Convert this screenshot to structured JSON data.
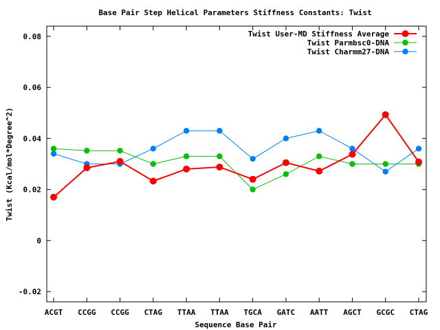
{
  "chart_data": {
    "type": "line",
    "title": "Base Pair Step Helical Parameters Stiffness Constants: Twist",
    "xlabel": "Sequence Base Pair",
    "ylabel": "Twist (Kcal/mol*Degree^2)",
    "categories": [
      "ACGT",
      "CCGG",
      "CCGG",
      "CTAG",
      "TTAA",
      "TTAA",
      "TGCA",
      "GATC",
      "AATT",
      "AGCT",
      "GCGC",
      "CTAG"
    ],
    "ylim": [
      -0.024,
      0.084
    ],
    "yticks": [
      -0.02,
      0,
      0.02,
      0.04,
      0.06,
      0.08
    ],
    "ytick_labels": [
      "-0.02",
      "0",
      "0.02",
      "0.04",
      "0.06",
      "0.08"
    ],
    "grid": false,
    "legend_position": "top-right",
    "series": [
      {
        "name": "Twist User-MD Stiffness Average",
        "color": "#ff0000",
        "values": [
          0.017,
          0.0285,
          0.031,
          0.0233,
          0.028,
          0.0288,
          0.024,
          0.0305,
          0.0272,
          0.0338,
          0.0493,
          0.0308
        ]
      },
      {
        "name": "Twist Parmbsc0-DNA",
        "color": "#00c000",
        "values": [
          0.036,
          0.0352,
          0.0352,
          0.03,
          0.033,
          0.033,
          0.02,
          0.026,
          0.033,
          0.03,
          0.03,
          0.03
        ]
      },
      {
        "name": "Twist Charmm27-DNA",
        "color": "#0080ff",
        "values": [
          0.034,
          0.03,
          0.03,
          0.036,
          0.043,
          0.043,
          0.032,
          0.04,
          0.043,
          0.036,
          0.027,
          0.036
        ]
      }
    ]
  }
}
